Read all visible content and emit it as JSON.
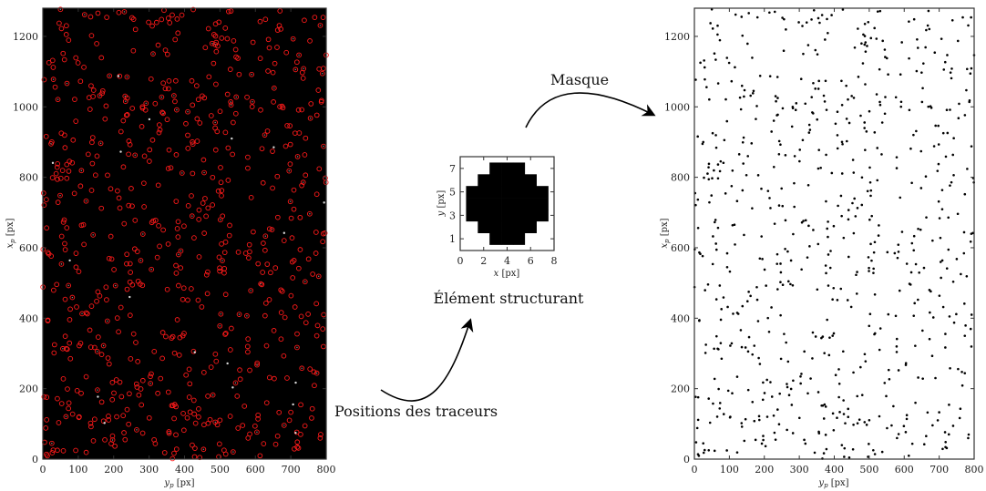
{
  "captions": {
    "positions": "Positions des traceurs",
    "structuring": "Élément structurant",
    "mask": "Masque"
  },
  "colors": {
    "particle_marker": "#ff1a1a",
    "background_dark": "#000000",
    "mask_dot": "#000000"
  },
  "chart_data": [
    {
      "type": "scatter",
      "panel": "tracer-positions",
      "xlabel_var": "y",
      "xlabel_sub": "p",
      "xlabel_unit": " [px]",
      "ylabel_var": "x",
      "ylabel_sub": "p",
      "ylabel_unit": " [px]",
      "xlim": [
        0,
        800
      ],
      "ylim": [
        0,
        1280
      ],
      "xticks": [
        0,
        100,
        200,
        300,
        400,
        500,
        600,
        700,
        800
      ],
      "yticks": [
        0,
        200,
        400,
        600,
        800,
        1000,
        1200
      ],
      "background": "#000000",
      "marker": "circle",
      "marker_color": "#ff1a1a",
      "grid": false,
      "approx_point_count": 700
    },
    {
      "type": "heatmap",
      "panel": "structuring-element",
      "xlabel_var": "x",
      "xlabel_unit": " [px]",
      "ylabel_var": "y",
      "ylabel_unit": " [px]",
      "xlim": [
        0,
        8
      ],
      "ylim": [
        0,
        8
      ],
      "xticks": [
        0,
        2,
        4,
        6,
        8
      ],
      "yticks": [
        1,
        3,
        5,
        7
      ],
      "cells": [
        [
          0,
          0,
          1,
          1,
          1,
          0,
          0
        ],
        [
          0,
          1,
          1,
          1,
          1,
          1,
          0
        ],
        [
          1,
          1,
          1,
          1,
          1,
          1,
          1
        ],
        [
          1,
          1,
          1,
          1,
          1,
          1,
          1
        ],
        [
          1,
          1,
          1,
          1,
          1,
          1,
          1
        ],
        [
          0,
          1,
          1,
          1,
          1,
          1,
          0
        ],
        [
          0,
          0,
          1,
          1,
          1,
          0,
          0
        ]
      ],
      "grid": false
    },
    {
      "type": "scatter",
      "panel": "mask",
      "xlabel_var": "y",
      "xlabel_sub": "p",
      "xlabel_unit": " [px]",
      "ylabel_var": "x",
      "ylabel_sub": "p",
      "ylabel_unit": " [px]",
      "xlim": [
        0,
        800
      ],
      "ylim": [
        0,
        1280
      ],
      "xticks": [
        0,
        100,
        200,
        300,
        400,
        500,
        600,
        700,
        800
      ],
      "yticks": [
        0,
        200,
        400,
        600,
        800,
        1000,
        1200
      ],
      "background": "#ffffff",
      "marker": "dot",
      "marker_color": "#000000",
      "grid": false,
      "approx_point_count": 700
    }
  ]
}
